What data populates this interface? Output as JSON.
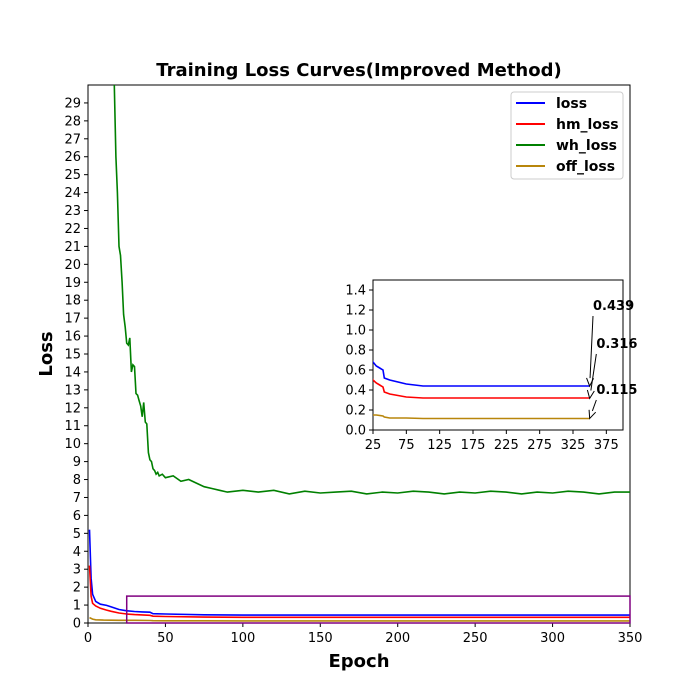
{
  "chart_data": {
    "type": "line",
    "title": "Training Loss Curves(Improved Method)",
    "xlabel": "Epoch",
    "ylabel": "Loss",
    "xlim": [
      0,
      350
    ],
    "ylim": [
      0,
      30
    ],
    "xticks": [
      0,
      50,
      100,
      150,
      200,
      250,
      300,
      350
    ],
    "yticks": [
      0,
      1,
      2,
      3,
      4,
      5,
      6,
      7,
      8,
      9,
      10,
      11,
      12,
      13,
      14,
      15,
      16,
      17,
      18,
      19,
      20,
      21,
      22,
      23,
      24,
      25,
      26,
      27,
      28,
      29
    ],
    "grid": false,
    "legend_position": "top-right",
    "series": [
      {
        "name": "loss",
        "color": "#0000ff",
        "x": [
          1,
          2,
          3,
          5,
          8,
          12,
          15,
          20,
          25,
          30,
          35,
          40,
          42,
          50,
          75,
          100,
          150,
          200,
          250,
          300,
          350
        ],
        "y": [
          5.2,
          2.5,
          1.6,
          1.2,
          1.05,
          0.98,
          0.9,
          0.75,
          0.68,
          0.64,
          0.62,
          0.6,
          0.52,
          0.5,
          0.46,
          0.44,
          0.44,
          0.44,
          0.44,
          0.44,
          0.44
        ]
      },
      {
        "name": "hm_loss",
        "color": "#ff0000",
        "x": [
          1,
          2,
          3,
          5,
          8,
          12,
          15,
          20,
          25,
          30,
          35,
          40,
          42,
          50,
          75,
          100,
          150,
          200,
          250,
          300,
          350
        ],
        "y": [
          3.2,
          1.5,
          1.1,
          0.95,
          0.82,
          0.72,
          0.65,
          0.56,
          0.5,
          0.47,
          0.45,
          0.43,
          0.38,
          0.36,
          0.33,
          0.32,
          0.32,
          0.32,
          0.32,
          0.32,
          0.32
        ]
      },
      {
        "name": "wh_loss",
        "color": "#008000",
        "x": [
          17,
          18,
          19,
          20,
          21,
          22,
          23,
          24,
          25,
          26,
          27,
          28,
          29,
          30,
          31,
          32,
          33,
          34,
          35,
          36,
          37,
          38,
          39,
          40,
          41,
          42,
          43,
          44,
          45,
          46,
          48,
          50,
          55,
          60,
          65,
          70,
          75,
          80,
          85,
          90,
          100,
          110,
          120,
          130,
          140,
          150,
          160,
          170,
          180,
          190,
          200,
          210,
          220,
          230,
          240,
          250,
          260,
          270,
          280,
          290,
          300,
          310,
          320,
          330,
          340,
          350
        ],
        "y": [
          30,
          26,
          24,
          21,
          20.5,
          19,
          17.2,
          16.5,
          15.6,
          15.5,
          15.9,
          14,
          14.4,
          14.3,
          12.8,
          12.7,
          12.4,
          12.1,
          11.5,
          12.3,
          11.2,
          11.1,
          9.5,
          9.1,
          9.0,
          8.6,
          8.5,
          8.3,
          8.4,
          8.2,
          8.3,
          8.1,
          8.2,
          7.9,
          8.0,
          7.8,
          7.6,
          7.5,
          7.4,
          7.3,
          7.4,
          7.3,
          7.4,
          7.2,
          7.35,
          7.25,
          7.3,
          7.35,
          7.2,
          7.3,
          7.25,
          7.35,
          7.3,
          7.2,
          7.3,
          7.25,
          7.35,
          7.3,
          7.2,
          7.3,
          7.25,
          7.35,
          7.3,
          7.2,
          7.3,
          7.3
        ]
      },
      {
        "name": "off_loss",
        "color": "#b8860b",
        "x": [
          1,
          3,
          5,
          10,
          20,
          30,
          40,
          42,
          50,
          75,
          100,
          150,
          200,
          250,
          300,
          350
        ],
        "y": [
          0.3,
          0.22,
          0.18,
          0.16,
          0.15,
          0.15,
          0.14,
          0.13,
          0.12,
          0.12,
          0.115,
          0.115,
          0.115,
          0.115,
          0.115,
          0.115
        ]
      }
    ],
    "zoom_box": {
      "xlim": [
        25,
        350
      ],
      "ylim": [
        0,
        1.5
      ],
      "color": "#800080"
    },
    "inset": {
      "xlim": [
        25,
        400
      ],
      "ylim": [
        0,
        1.5
      ],
      "xticks": [
        25,
        75,
        125,
        175,
        225,
        275,
        325,
        375
      ],
      "yticks": [
        0.0,
        0.2,
        0.4,
        0.6,
        0.8,
        1.0,
        1.2,
        1.4
      ],
      "ytick_labels": [
        "0.0",
        "0.2",
        "0.4",
        "0.6",
        "0.8",
        "1.0",
        "1.2",
        "1.4"
      ]
    },
    "annotations": [
      {
        "text": "0.439",
        "x": 350,
        "y": 0.439,
        "text_x": 355,
        "text_y": 1.2
      },
      {
        "text": "0.316",
        "x": 350,
        "y": 0.316,
        "text_x": 360,
        "text_y": 0.82
      },
      {
        "text": "0.115",
        "x": 350,
        "y": 0.115,
        "text_x": 360,
        "text_y": 0.36
      }
    ]
  }
}
